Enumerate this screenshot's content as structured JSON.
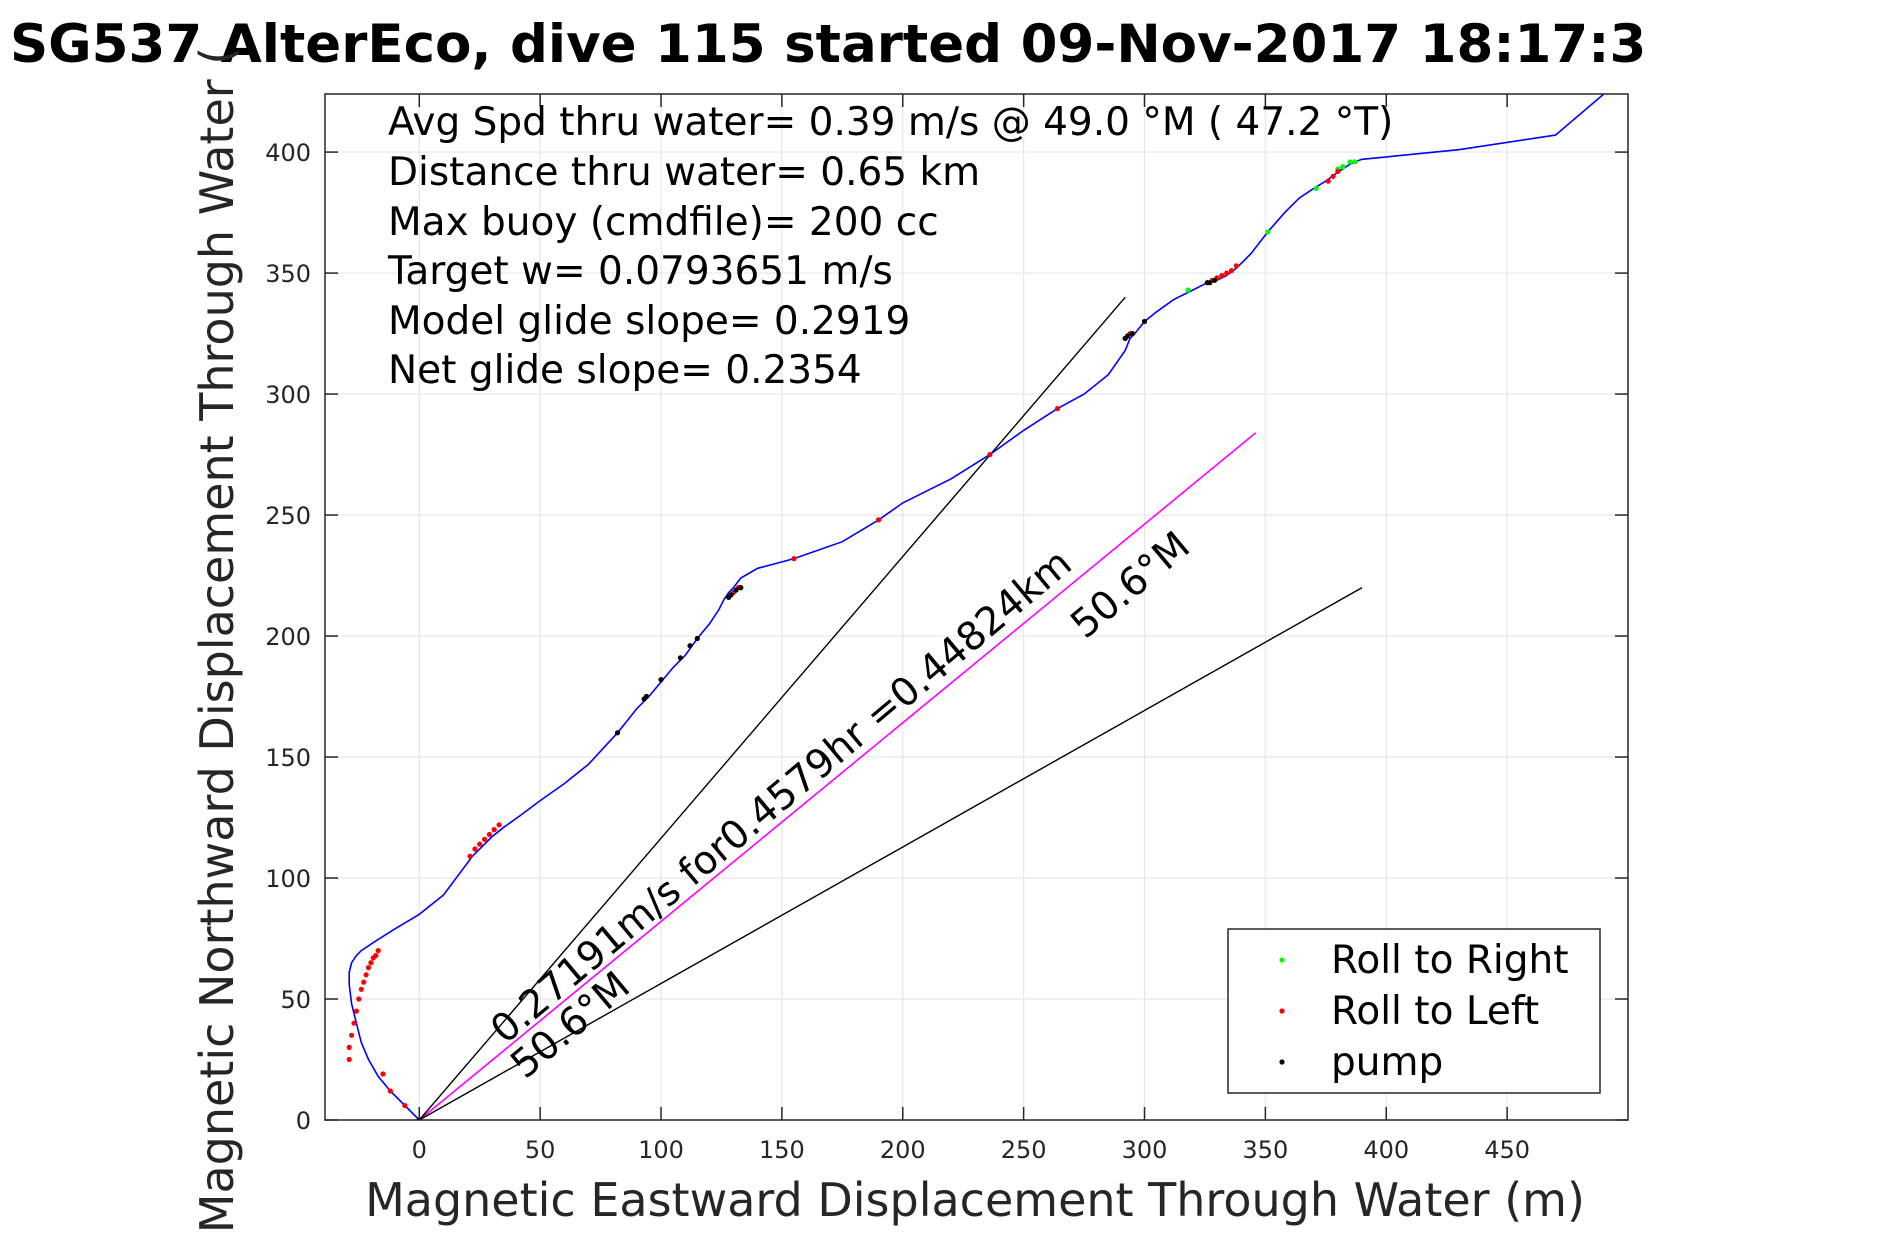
{
  "chart_data": {
    "type": "scatter",
    "title": "SG537 AlterEco, dive 115 started 09-Nov-2017 18:17:3",
    "xlabel": "Magnetic Eastward Displacement Through Water (m)",
    "ylabel": "Magnetic Northward Displacement Through Water (",
    "xlim": [
      -39,
      500
    ],
    "ylim": [
      0,
      424
    ],
    "xticks": [
      0,
      50,
      100,
      150,
      200,
      250,
      300,
      350,
      400,
      450
    ],
    "yticks": [
      0,
      50,
      100,
      150,
      200,
      250,
      300,
      350,
      400
    ],
    "grid": true,
    "annotations": [
      "Avg Spd thru water=  0.39 m/s @  49.0 °M ( 47.2 °T)",
      "Distance thru water=  0.65 km",
      "Max buoy (cmdfile)= 200 cc",
      "Target w= 0.0793651 m/s",
      "Model glide slope= 0.2919",
      "Net glide slope= 0.2354"
    ],
    "rotated_labels": {
      "current": "0.27191m/s for0.4579hr =0.44824km",
      "current_heading": "50.6°M",
      "track_heading": "50.6°M"
    },
    "legend": {
      "placement": "bottom-right",
      "entries": [
        {
          "label": "Roll to Right",
          "color": "#00ff00"
        },
        {
          "label": "Roll to Left",
          "color": "#ff0000"
        },
        {
          "label": "pump",
          "color": "#000000"
        }
      ]
    },
    "colors": {
      "track": "#0000ff",
      "current_line": "#ff00ff",
      "reference_lines": "#000000",
      "grid": "#e6e6e6",
      "axes": "#262626"
    },
    "series": [
      {
        "role": "track",
        "x": [
          0,
          -6,
          -12,
          -17,
          -21,
          -24,
          -26,
          -28,
          -29,
          -29,
          -28,
          -26,
          -24,
          -21,
          -18,
          -10,
          0,
          10,
          22,
          26,
          30,
          35,
          42,
          50,
          60,
          70,
          82,
          86,
          90,
          95,
          100,
          105,
          110,
          115,
          120,
          124,
          126,
          128,
          130,
          133,
          140,
          155,
          175,
          190,
          200,
          220,
          236,
          250,
          264,
          275,
          285,
          292,
          294,
          296,
          300,
          305,
          312,
          320,
          326,
          330,
          334,
          338,
          344,
          351,
          358,
          364,
          370,
          375,
          379,
          382,
          385,
          387,
          390,
          400,
          430,
          470,
          490
        ],
        "y": [
          0,
          6,
          12,
          18,
          25,
          32,
          40,
          48,
          56,
          61,
          65,
          68,
          70,
          72,
          74,
          79,
          85,
          93,
          109,
          113,
          117,
          121,
          126,
          132,
          139,
          147,
          160,
          165,
          170,
          175,
          181,
          187,
          192,
          199,
          205,
          211,
          215,
          218,
          220,
          224,
          228,
          232,
          239,
          248,
          255,
          265,
          275,
          285,
          294,
          300,
          308,
          318,
          323,
          325,
          330,
          334,
          339,
          343,
          346,
          347,
          349,
          352,
          358,
          367,
          375,
          381,
          385,
          388,
          391,
          393,
          395,
          396,
          397,
          398,
          401,
          407,
          424
        ]
      },
      {
        "role": "current-line",
        "x": [
          0,
          346
        ],
        "y": [
          0,
          284
        ]
      },
      {
        "role": "reference-line-1",
        "x": [
          0,
          292
        ],
        "y": [
          0,
          340
        ]
      },
      {
        "role": "reference-line-2",
        "x": [
          0,
          390
        ],
        "y": [
          0,
          220
        ]
      },
      {
        "name": "Roll to Right",
        "x": [
          318,
          351,
          371,
          380,
          382,
          385,
          387
        ],
        "y": [
          343,
          367,
          385,
          393,
          394,
          396,
          396
        ]
      },
      {
        "name": "Roll to Left",
        "x": [
          -29,
          -29,
          -28,
          -27,
          -26,
          -25,
          -24,
          -23,
          -22,
          -21,
          -20,
          -19,
          -18,
          -17,
          -15,
          -12,
          -6,
          0,
          21,
          23,
          25,
          27,
          29,
          31,
          33,
          128,
          130,
          132,
          155,
          190,
          236,
          264,
          292,
          294,
          326,
          328,
          330,
          332,
          334,
          336,
          338,
          376,
          378,
          380
        ],
        "y": [
          25,
          30,
          35,
          40,
          45,
          50,
          54,
          57,
          60,
          63,
          65,
          67,
          68,
          70,
          19,
          12,
          6,
          0,
          109,
          112,
          114,
          116,
          118,
          120,
          122,
          216,
          218,
          220,
          232,
          248,
          275,
          294,
          323,
          325,
          346,
          347,
          348,
          349,
          350,
          351,
          353,
          388,
          390,
          392
        ]
      },
      {
        "name": "pump",
        "x": [
          82,
          93,
          94,
          100,
          108,
          112,
          115,
          128,
          129,
          131,
          133,
          292,
          293,
          295,
          300,
          326,
          327,
          329,
          0
        ],
        "y": [
          160,
          174,
          175,
          182,
          191,
          196,
          199,
          216,
          217,
          219,
          220,
          323,
          324,
          325,
          330,
          346,
          346,
          347,
          0
        ]
      }
    ]
  }
}
